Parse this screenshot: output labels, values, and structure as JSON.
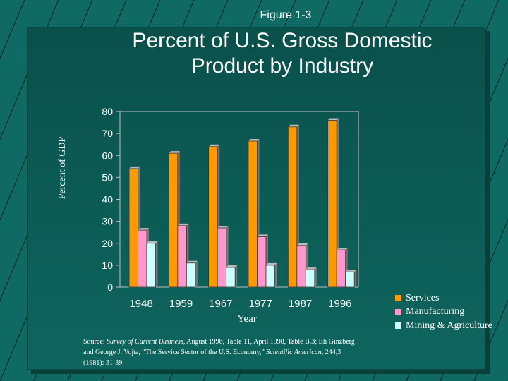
{
  "figure_label": "Figure 1-3",
  "title_line1": "Percent of U.S. Gross Domestic",
  "title_line2": "Product by Industry",
  "colors": {
    "background": "#0e6a62",
    "services": "#ff9900",
    "manufacturing": "#ff99cc",
    "mining_agriculture": "#ccffff"
  },
  "chart_data": {
    "type": "bar",
    "categories": [
      "1948",
      "1959",
      "1967",
      "1977",
      "1987",
      "1996"
    ],
    "series": [
      {
        "name": "Services",
        "values": [
          54,
          61,
          64,
          66.5,
          73,
          76
        ]
      },
      {
        "name": "Manufacturing",
        "values": [
          26,
          28,
          27,
          23,
          19,
          17
        ]
      },
      {
        "name": "Mining & Agriculture",
        "values": [
          20,
          11,
          9,
          10,
          8,
          7
        ]
      }
    ],
    "xlabel": "Year",
    "ylabel": "Percent of GDP",
    "ylim": [
      0,
      80
    ],
    "yticks": [
      "0",
      "10",
      "20",
      "30",
      "40",
      "50",
      "60",
      "70",
      "80"
    ],
    "legend_position": "bottom-right",
    "grid": false
  },
  "source": {
    "prefix": "Source:  ",
    "italic1": "Survey of Current Business,",
    "text1": " August 1996, Table 11, April 1998, Table B.3;  Eli Ginzberg and George J. Vojta, “The Service Sector of the U.S. Economy,” ",
    "italic2": "Scientific American,",
    "text2": " 244,3 (1981): 31-39."
  }
}
